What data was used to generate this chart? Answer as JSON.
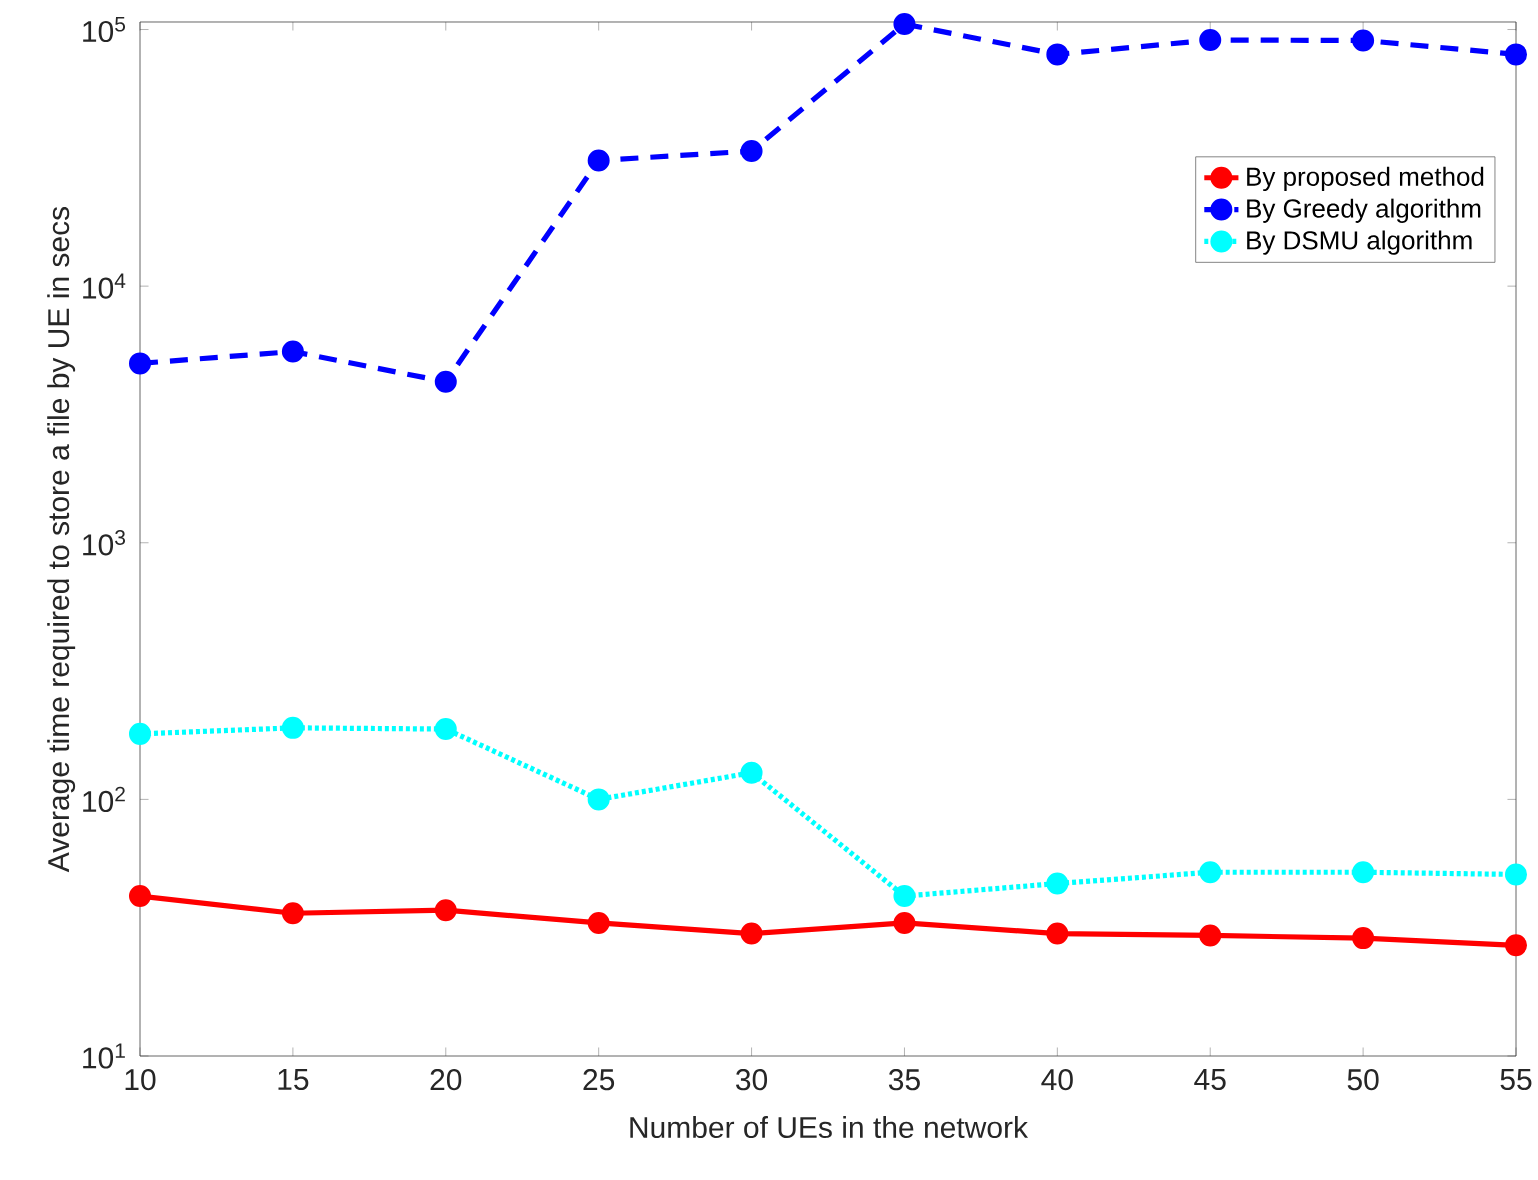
{
  "chart_data": {
    "type": "line",
    "xlabel": "Number of UEs in the network",
    "ylabel": "Average time required to store a file by UE in secs",
    "x": [
      10,
      15,
      20,
      25,
      30,
      35,
      40,
      45,
      50,
      55
    ],
    "series": [
      {
        "name": "By proposed method",
        "color": "#ff0000",
        "line_style": "solid",
        "marker": "circle",
        "values": [
          42,
          36,
          37,
          33,
          30,
          33,
          30,
          29.5,
          28.8,
          27
        ]
      },
      {
        "name": "By Greedy algorithm",
        "color": "#0000ff",
        "line_style": "dashed",
        "marker": "circle",
        "values": [
          5000,
          5560,
          4240,
          30900,
          33600,
          105000,
          80000,
          91000,
          90700,
          80000
        ]
      },
      {
        "name": "By DSMU algorithm",
        "color": "#00ffff",
        "line_style": "dotted",
        "marker": "circle",
        "values": [
          180,
          190,
          188,
          100,
          127,
          42,
          47,
          52,
          52,
          51
        ]
      }
    ],
    "log": "y",
    "xlim": [
      10,
      55
    ],
    "xticks": [
      10,
      15,
      20,
      25,
      30,
      35,
      40,
      45,
      50,
      55
    ],
    "ylim": [
      10,
      107000
    ],
    "yticks": [
      {
        "value": 10,
        "label": "10$^{1}$"
      },
      {
        "value": 100,
        "label": "10$^{2}$"
      },
      {
        "value": 1000,
        "label": "10$^{3}$"
      },
      {
        "value": 10000,
        "label": "10$^{4}$"
      },
      {
        "value": 100000,
        "label": "10$^{5}$"
      }
    ],
    "grid": false,
    "legend": "top right"
  }
}
